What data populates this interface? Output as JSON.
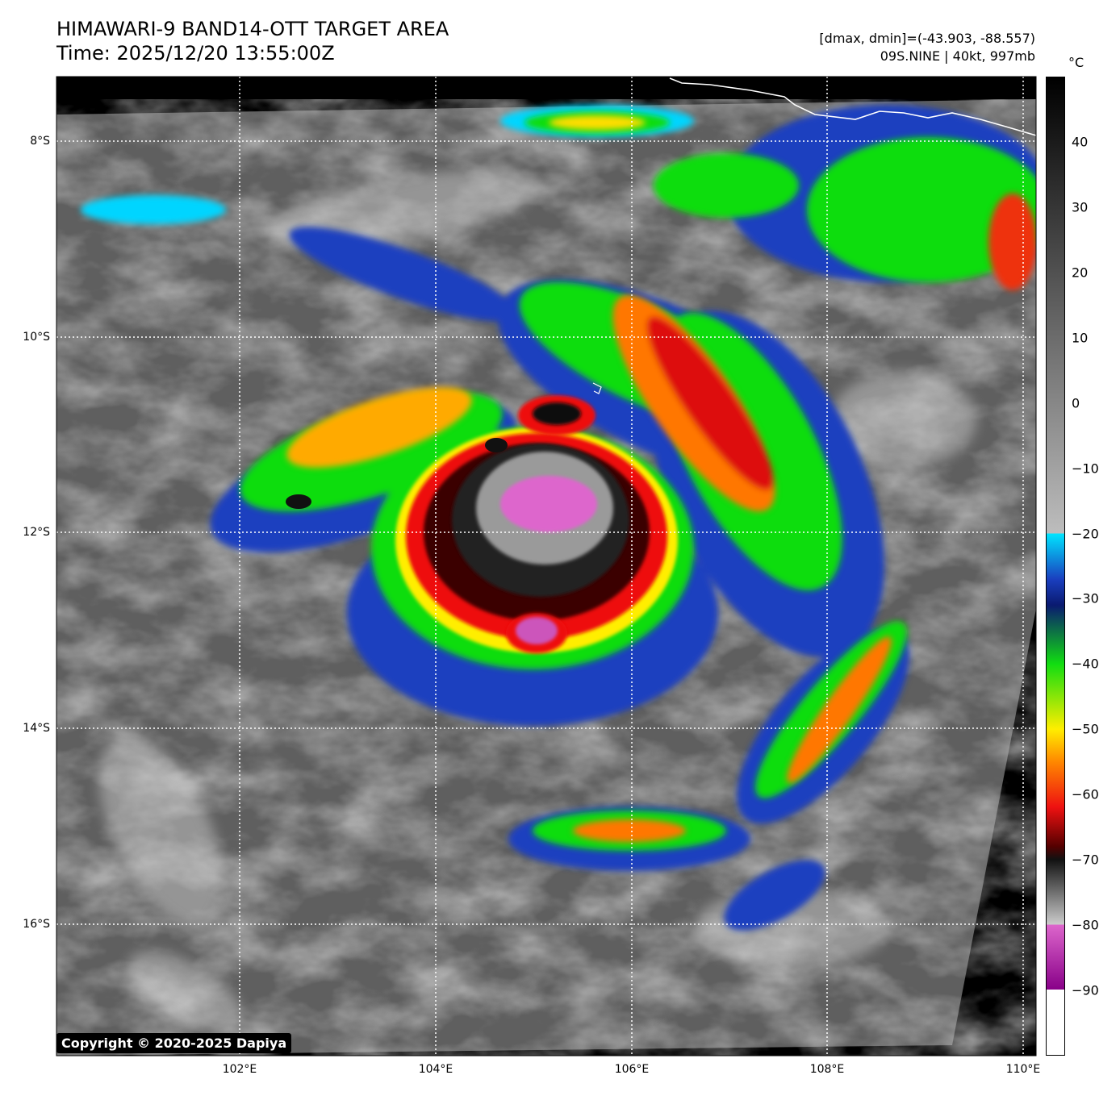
{
  "header": {
    "title": "HIMAWARI-9 BAND14-OTT TARGET AREA",
    "time": "Time: 2025/12/20 13:55:00Z",
    "range": "[dmax, dmin]=(-43.903, -88.557)",
    "storm": "09S.NINE | 40kt, 997mb"
  },
  "map": {
    "lat_labels": [
      "8°S",
      "10°S",
      "12°S",
      "14°S",
      "16°S"
    ],
    "lon_labels": [
      "102°E",
      "104°E",
      "106°E",
      "108°E",
      "110°E"
    ],
    "gridlines": true
  },
  "colorbar": {
    "unit": "°C",
    "ticks": [
      "40",
      "30",
      "20",
      "10",
      "0",
      "−10",
      "−20",
      "−30",
      "−40",
      "−50",
      "−60",
      "−70",
      "−80",
      "−90"
    ],
    "tick_values": [
      40,
      30,
      20,
      10,
      0,
      -10,
      -20,
      -30,
      -40,
      -50,
      -60,
      -70,
      -80,
      -90
    ],
    "range": [
      -100,
      50
    ],
    "colors": {
      "warm_top": "#000000",
      "gray_mid": "#bdbdbd",
      "cyan": "#00e5ff",
      "blue": "#1a3fbf",
      "navy": "#0a1a70",
      "green": "#11dd11",
      "yellow": "#ffee00",
      "orange": "#ff8800",
      "red": "#ee1111",
      "dark_red": "#550000",
      "magenta": "#dd66cc",
      "purple": "#880088",
      "white": "#ffffff"
    }
  },
  "footer": {
    "copyright": "Copyright © 2020-2025 Dapiya"
  }
}
